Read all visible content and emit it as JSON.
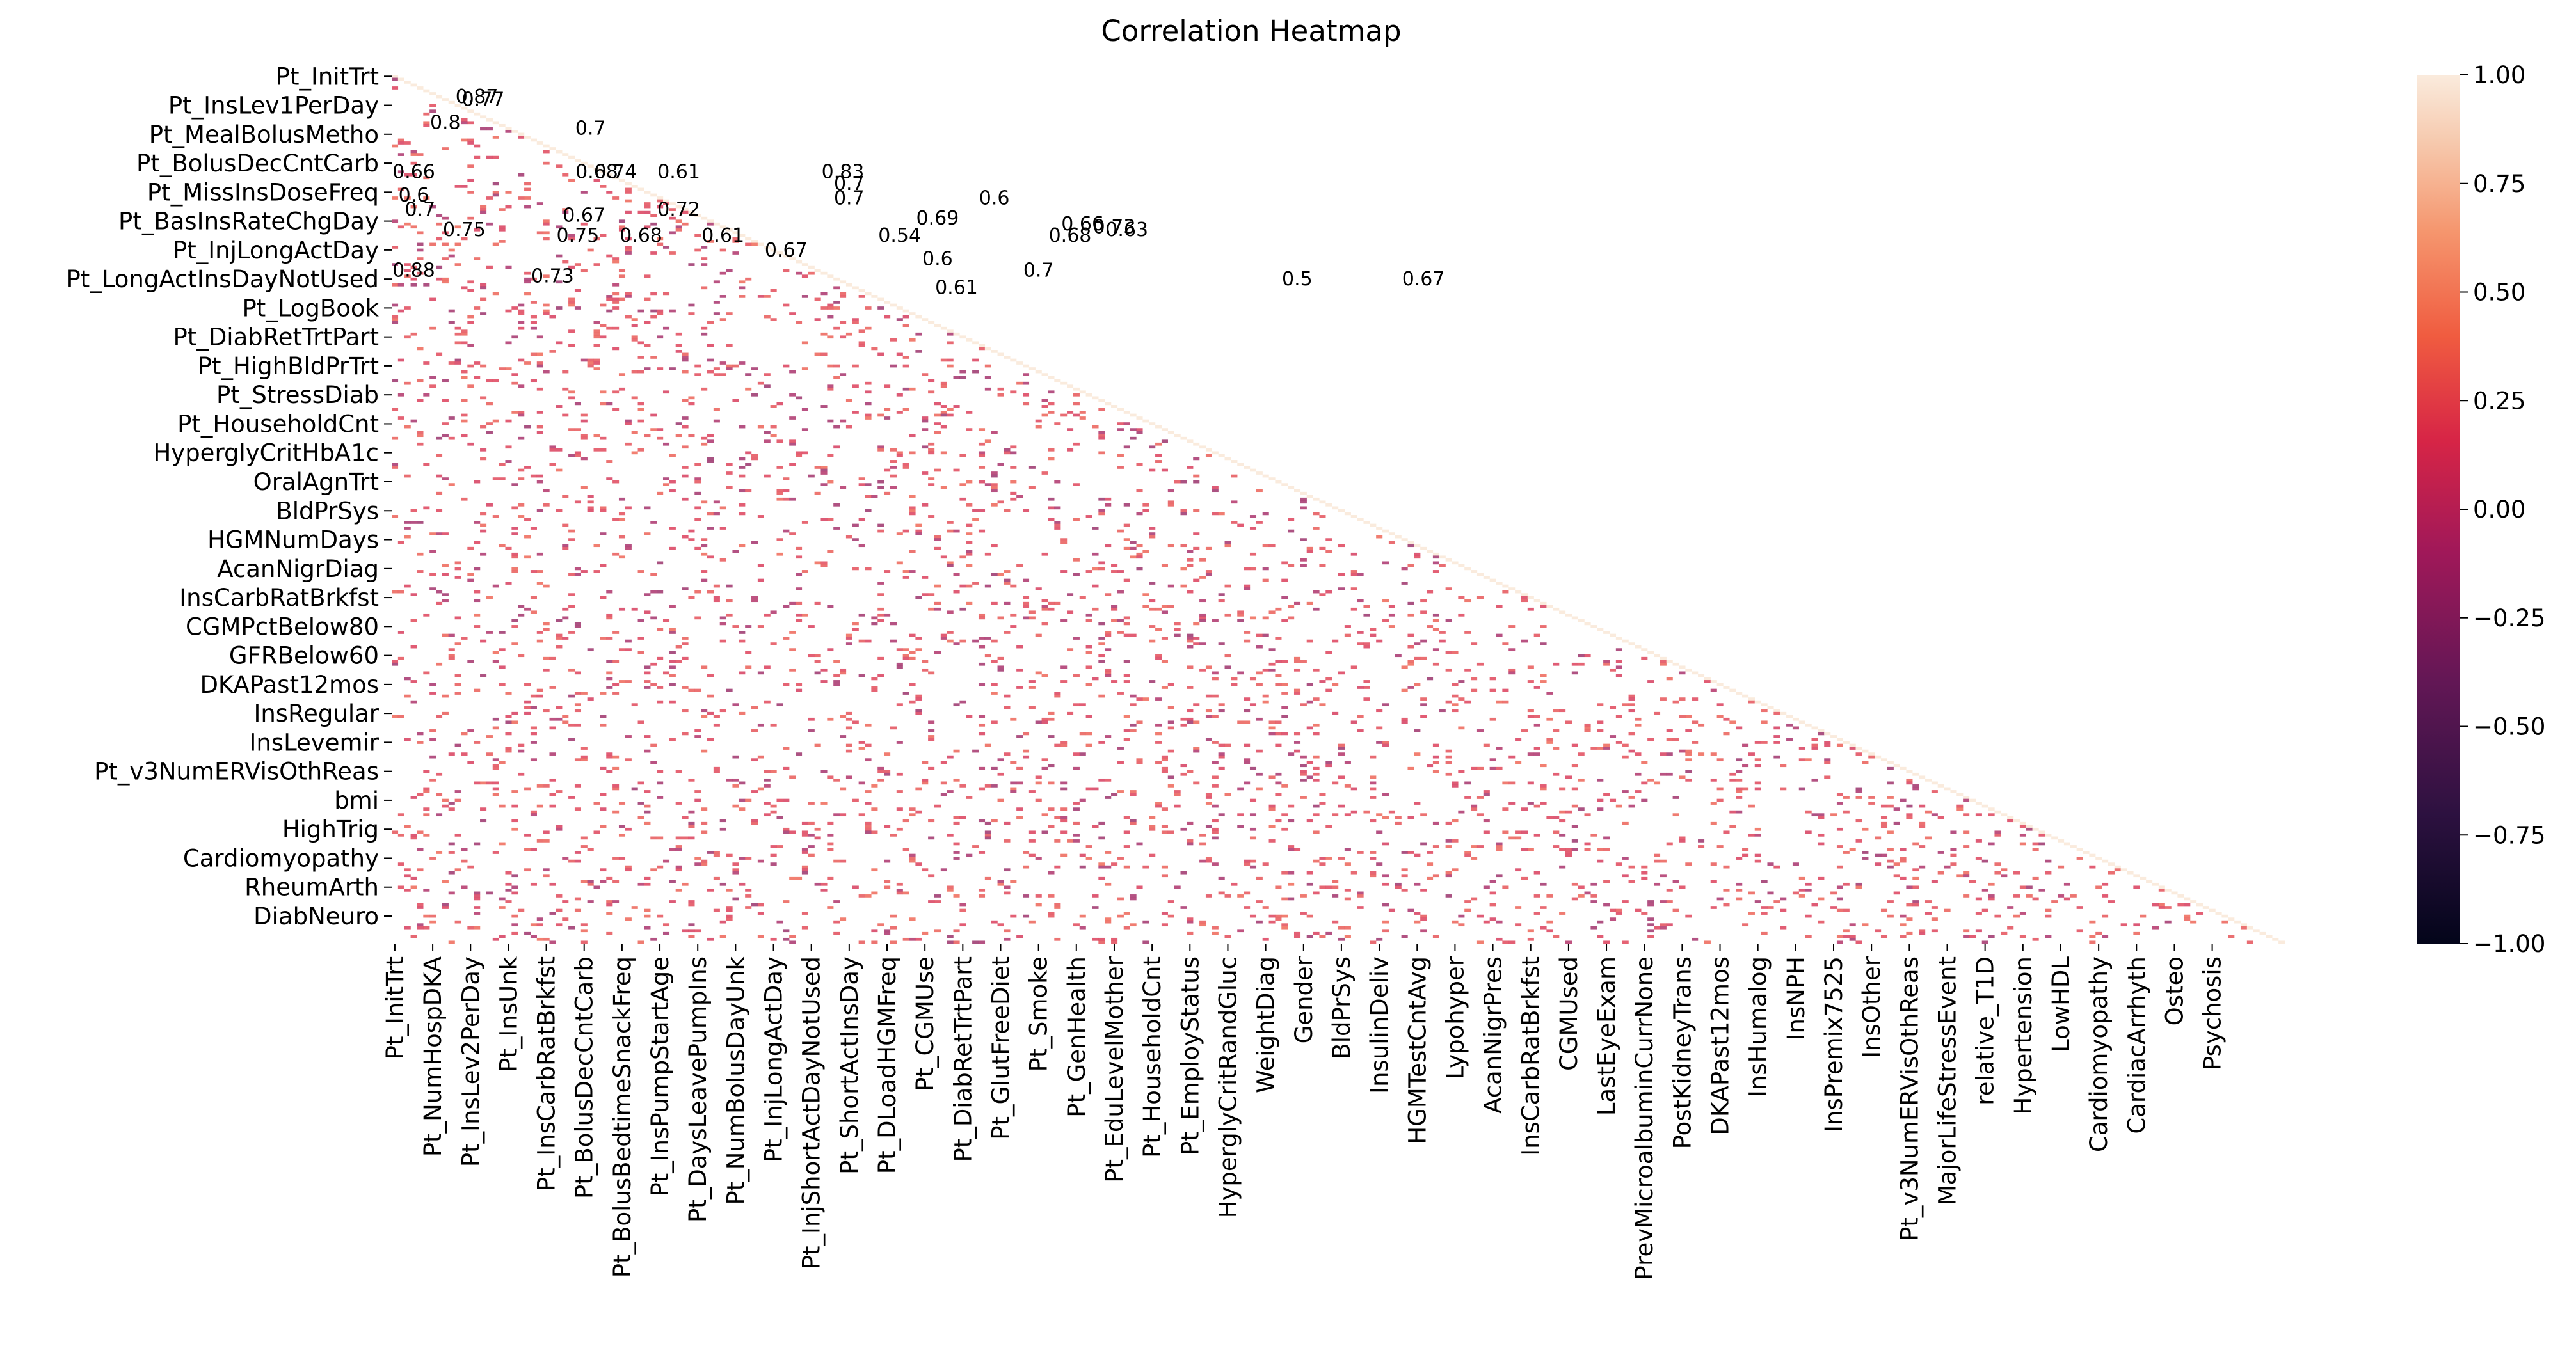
{
  "chart_data": {
    "type": "heatmap",
    "title": "Correlation Heatmap",
    "mask": "upper-triangle",
    "colormap": "rocket",
    "vmin": -1.0,
    "vmax": 1.0,
    "colorbar_ticks": [
      "1.00",
      "0.75",
      "0.50",
      "0.25",
      "0.00",
      "−0.25",
      "−0.50",
      "−0.75",
      "−1.00"
    ],
    "colorbar_values": [
      1.0,
      0.75,
      0.5,
      0.25,
      0.0,
      -0.25,
      -0.5,
      -0.75,
      -1.0
    ],
    "n_variables": 300,
    "ytick_labels": [
      "Pt_InitTrt",
      "Pt_InsLev1PerDay",
      "Pt_MealBolusMetho",
      "Pt_BolusDecCntCarb",
      "Pt_MissInsDoseFreq",
      "Pt_BasInsRateChgDay",
      "Pt_InjLongActDay",
      "Pt_LongActInsDayNotUsed",
      "Pt_LogBook",
      "Pt_DiabRetTrtPart",
      "Pt_HighBldPrTrt",
      "Pt_StressDiab",
      "Pt_HouseholdCnt",
      "HyperglyCritHbA1c",
      "OralAgnTrt",
      "BldPrSys",
      "HGMNumDays",
      "AcanNigrDiag",
      "InsCarbRatBrkfst",
      "CGMPctBelow80",
      "GFRBelow60",
      "DKAPast12mos",
      "InsRegular",
      "InsLevemir",
      "Pt_v3NumERVisOthReas",
      "bmi",
      "HighTrig",
      "Cardiomyopathy",
      "RheumArth",
      "DiabNeuro"
    ],
    "xtick_labels": [
      "Pt_InitTrt",
      "Pt_NumHospDKA",
      "Pt_InsLev2PerDay",
      "Pt_InsUnk",
      "Pt_InsCarbRatBrkfst",
      "Pt_BolusDecCntCarb",
      "Pt_BolusBedtimeSnackFreq",
      "Pt_InsPumpStartAge",
      "Pt_DaysLeavePumpIns",
      "Pt_NumBolusDayUnk",
      "Pt_InjLongActDay",
      "Pt_InjShortActDayNotUsed",
      "Pt_ShortActInsDay",
      "Pt_DLoadHGMFreq",
      "Pt_CGMUse",
      "Pt_DiabRetTrtPart",
      "Pt_GlutFreeDiet",
      "Pt_Smoke",
      "Pt_GenHealth",
      "Pt_EduLevelMother",
      "Pt_HouseholdCnt",
      "Pt_EmployStatus",
      "HyperglyCritRandGluc",
      "WeightDiag",
      "Gender",
      "BldPrSys",
      "InsulinDeliv",
      "HGMTestCntAvg",
      "Lypohyper",
      "AcanNigrPres",
      "InsCarbRatBrkfst",
      "CGMUsed",
      "LastEyeExam",
      "PrevMicroalbuminCurrNone",
      "PostKidneyTrans",
      "DKAPast12mos",
      "InsHumalog",
      "InsNPH",
      "InsPremix7525",
      "InsOther",
      "Pt_v3NumERVisOthReas",
      "MajorLifeStressEvent",
      "relative_T1D",
      "Hypertension",
      "LowHDL",
      "Cardiomyopathy",
      "CardiacArrhyth",
      "Osteo",
      "Psychosis"
    ],
    "annotations": [
      {
        "row": 7,
        "col": 13,
        "text": "0.87"
      },
      {
        "row": 8,
        "col": 14,
        "text": "0.77"
      },
      {
        "row": 16,
        "col": 8,
        "text": "0.8"
      },
      {
        "row": 18,
        "col": 31,
        "text": "0.7"
      },
      {
        "row": 33,
        "col": 3,
        "text": "0.66"
      },
      {
        "row": 33,
        "col": 32,
        "text": "0.68"
      },
      {
        "row": 33,
        "col": 35,
        "text": "0.74"
      },
      {
        "row": 33,
        "col": 45,
        "text": "0.61"
      },
      {
        "row": 33,
        "col": 71,
        "text": "0.83"
      },
      {
        "row": 37,
        "col": 72,
        "text": "0.7"
      },
      {
        "row": 41,
        "col": 3,
        "text": "0.6"
      },
      {
        "row": 42,
        "col": 72,
        "text": "0.7"
      },
      {
        "row": 42,
        "col": 95,
        "text": "0.6"
      },
      {
        "row": 46,
        "col": 4,
        "text": "0.7"
      },
      {
        "row": 46,
        "col": 45,
        "text": "0.72"
      },
      {
        "row": 48,
        "col": 30,
        "text": "0.67"
      },
      {
        "row": 49,
        "col": 86,
        "text": "0.69"
      },
      {
        "row": 51,
        "col": 109,
        "text": "0.66"
      },
      {
        "row": 52,
        "col": 114,
        "text": "0.73"
      },
      {
        "row": 53,
        "col": 11,
        "text": "0.75"
      },
      {
        "row": 53,
        "col": 116,
        "text": "0.63"
      },
      {
        "row": 55,
        "col": 29,
        "text": "0.75"
      },
      {
        "row": 55,
        "col": 39,
        "text": "0.68"
      },
      {
        "row": 55,
        "col": 52,
        "text": "0.61"
      },
      {
        "row": 55,
        "col": 80,
        "text": "0.54"
      },
      {
        "row": 55,
        "col": 107,
        "text": "0.68"
      },
      {
        "row": 60,
        "col": 62,
        "text": "0.67"
      },
      {
        "row": 63,
        "col": 86,
        "text": "0.6"
      },
      {
        "row": 67,
        "col": 3,
        "text": "0.88"
      },
      {
        "row": 67,
        "col": 102,
        "text": "0.7"
      },
      {
        "row": 69,
        "col": 25,
        "text": "0.73"
      },
      {
        "row": 70,
        "col": 143,
        "text": "0.5"
      },
      {
        "row": 70,
        "col": 163,
        "text": "0.67"
      },
      {
        "row": 73,
        "col": 89,
        "text": "0.61"
      }
    ]
  }
}
